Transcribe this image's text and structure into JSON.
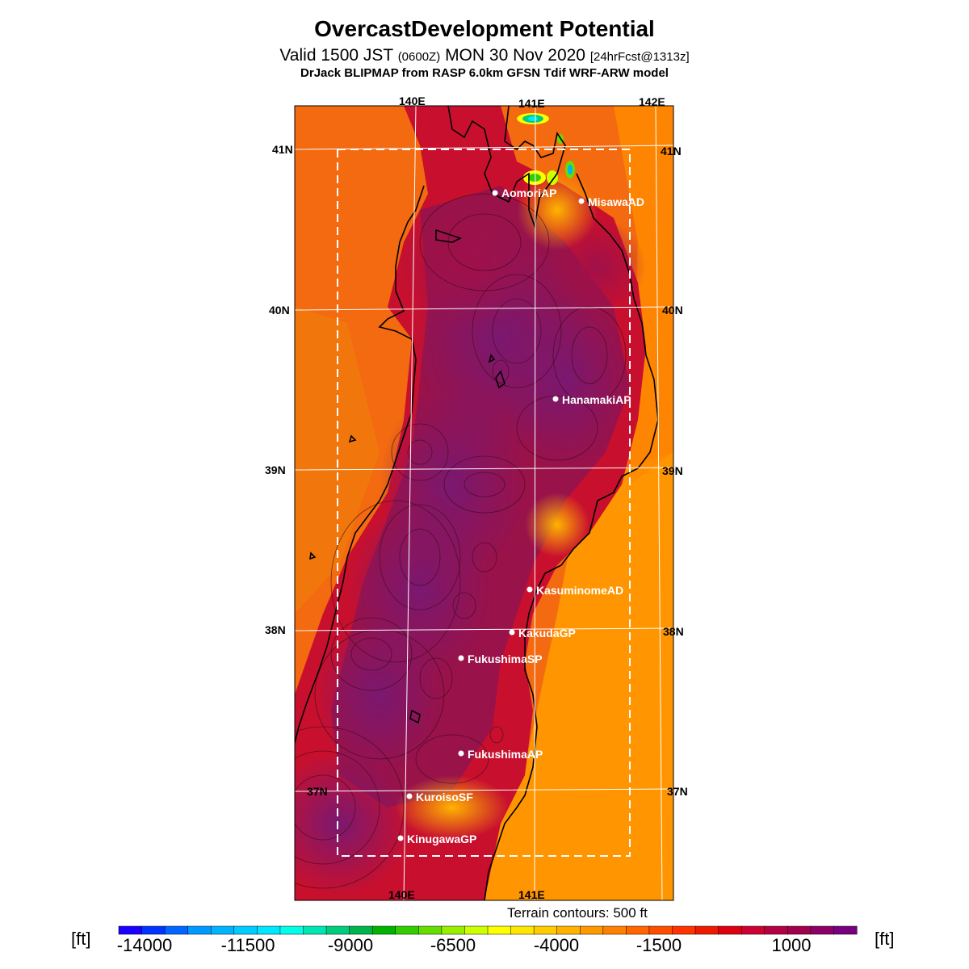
{
  "header": {
    "title": "OvercastDevelopment Potential",
    "valid_main": "Valid 1500 JST",
    "valid_zulu": "(0600Z)",
    "valid_date": "MON 30 Nov 2020",
    "forecast": "[24hrFcst@1313z]",
    "model": "DrJack BLIPMAP from RASP 6.0km GFSN Tdif WRF-ARW model"
  },
  "map": {
    "lon_labels": [
      "140E",
      "141E",
      "142E"
    ],
    "lat_labels": [
      "41N",
      "40N",
      "39N",
      "38N",
      "37N"
    ],
    "stations": [
      {
        "name": "AomoriAP"
      },
      {
        "name": "MisawaAD"
      },
      {
        "name": "HanamakiAP"
      },
      {
        "name": "KasuminomeAD"
      },
      {
        "name": "KakudaGP"
      },
      {
        "name": "FukushimaSP"
      },
      {
        "name": "FukushimaAP"
      },
      {
        "name": "KuroisoSF"
      },
      {
        "name": "KinugawaGP"
      }
    ],
    "terrain_note": "Terrain contours: 500 ft"
  },
  "colorbar": {
    "unit": "[ft]",
    "tick_labels": [
      "-14000",
      "-11500",
      "-9000",
      "-6500",
      "-4000",
      "-1500",
      "1000"
    ],
    "colors": [
      "#1a00ff",
      "#0033ff",
      "#0066ff",
      "#0099ff",
      "#00b3ff",
      "#00ccff",
      "#00e6ff",
      "#00ffe6",
      "#00e6b3",
      "#00cc80",
      "#00b34d",
      "#00b300",
      "#33cc00",
      "#66dd00",
      "#99ee00",
      "#ccff00",
      "#ffff00",
      "#ffe600",
      "#ffcc00",
      "#ffb300",
      "#ff9900",
      "#ff8000",
      "#ff6600",
      "#ff4d00",
      "#ff3300",
      "#ee1a00",
      "#dd0011",
      "#cc0033",
      "#b30044",
      "#a0004d",
      "#8c0066",
      "#780080"
    ]
  }
}
